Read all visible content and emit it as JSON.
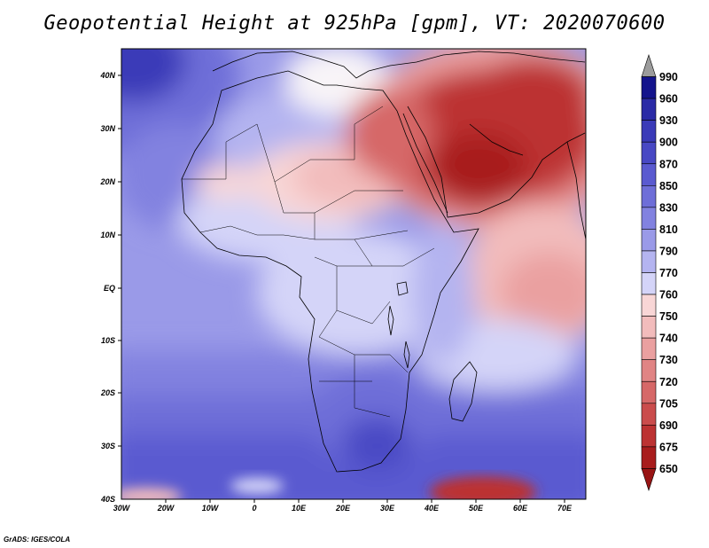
{
  "title": "Geopotential Height at 925hPa [gpm], VT: 2020070600",
  "credit": "GrADS: IGES/COLA",
  "map": {
    "lon_labels": [
      "30W",
      "20W",
      "10W",
      "0",
      "10E",
      "20E",
      "30E",
      "40E",
      "50E",
      "60E",
      "70E"
    ],
    "lat_labels": [
      "40N",
      "30N",
      "20N",
      "10N",
      "EQ",
      "10S",
      "20S",
      "30S",
      "40S"
    ],
    "lon_range": [
      -30,
      75
    ],
    "lat_range": [
      -40,
      45
    ]
  },
  "colorbar": {
    "levels": [
      "990",
      "960",
      "930",
      "900",
      "870",
      "850",
      "830",
      "810",
      "790",
      "770",
      "760",
      "750",
      "740",
      "730",
      "720",
      "705",
      "690",
      "675",
      "650"
    ],
    "colors": [
      "#9c9c9c",
      "#14148c",
      "#2a2aa6",
      "#3a3ab8",
      "#4848c4",
      "#5a5ad0",
      "#6e6ed8",
      "#8282e0",
      "#9a9ae8",
      "#b4b4f0",
      "#d4d4f8",
      "#f8d6d6",
      "#f2bcbc",
      "#eaa0a0",
      "#e08484",
      "#d66868",
      "#ca4c4c",
      "#bc3232",
      "#a81c1c",
      "#981414"
    ]
  }
}
